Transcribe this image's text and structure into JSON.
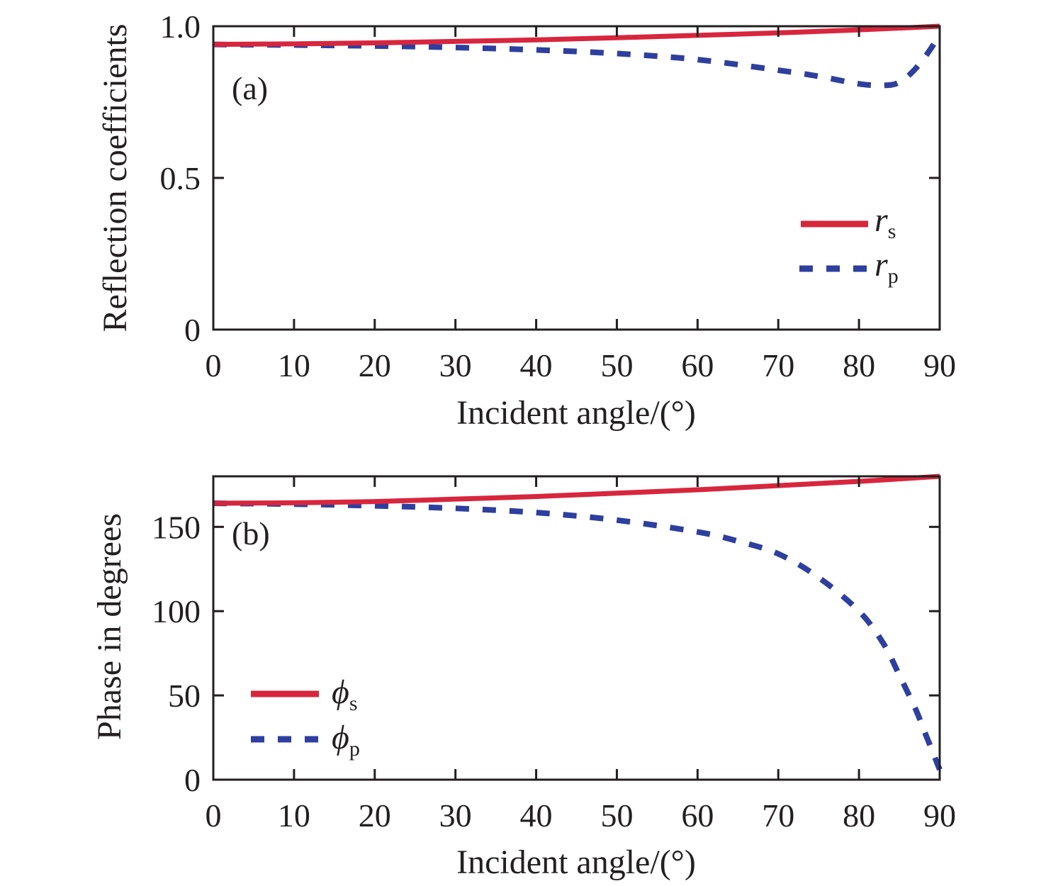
{
  "chart_data": [
    {
      "type": "line",
      "panel_label": "(a)",
      "title": "",
      "xlabel": "Incident angle/(°)",
      "ylabel": "Reflection coefficients",
      "xlim": [
        0,
        90
      ],
      "ylim": [
        0,
        1.0
      ],
      "x_ticks": [
        0,
        10,
        20,
        30,
        40,
        50,
        60,
        70,
        80,
        90
      ],
      "x_tick_labels": [
        "0",
        "10",
        "20",
        "30",
        "40",
        "50",
        "60",
        "70",
        "80",
        "90"
      ],
      "y_ticks": [
        0,
        0.5,
        1.0
      ],
      "y_tick_labels": [
        "0",
        "0.5",
        "1.0"
      ],
      "grid": false,
      "legend_position": "center-right",
      "series": [
        {
          "name": "r_s",
          "legend_main": "r",
          "legend_sub": "s",
          "style": "solid",
          "color": "#d7263d",
          "x": [
            0,
            10,
            20,
            30,
            40,
            50,
            60,
            70,
            80,
            90
          ],
          "values": [
            0.94,
            0.942,
            0.945,
            0.95,
            0.955,
            0.962,
            0.97,
            0.978,
            0.988,
            1.0
          ]
        },
        {
          "name": "r_p",
          "legend_main": "r",
          "legend_sub": "p",
          "style": "dashed",
          "color": "#2e3f9e",
          "x": [
            0,
            10,
            20,
            30,
            40,
            50,
            60,
            70,
            75,
            80,
            83,
            85,
            87,
            89,
            90
          ],
          "values": [
            0.94,
            0.938,
            0.935,
            0.93,
            0.922,
            0.91,
            0.89,
            0.855,
            0.835,
            0.81,
            0.805,
            0.815,
            0.86,
            0.93,
            0.98
          ]
        }
      ]
    },
    {
      "type": "line",
      "panel_label": "(b)",
      "title": "",
      "xlabel": "Incident angle/(°)",
      "ylabel": "Phase in degrees",
      "xlim": [
        0,
        90
      ],
      "ylim": [
        0,
        180
      ],
      "x_ticks": [
        0,
        10,
        20,
        30,
        40,
        50,
        60,
        70,
        80,
        90
      ],
      "x_tick_labels": [
        "0",
        "10",
        "20",
        "30",
        "40",
        "50",
        "60",
        "70",
        "80",
        "90"
      ],
      "y_ticks": [
        0,
        50,
        100,
        150
      ],
      "y_tick_labels": [
        "0",
        "50",
        "100",
        "150"
      ],
      "grid": false,
      "legend_position": "lower-left",
      "series": [
        {
          "name": "phi_s",
          "legend_main": "ϕ",
          "legend_sub": "s",
          "style": "solid",
          "color": "#d7263d",
          "x": [
            0,
            10,
            20,
            30,
            40,
            50,
            60,
            70,
            80,
            90
          ],
          "values": [
            164,
            164.3,
            165,
            166.5,
            168,
            170,
            172,
            174.5,
            177,
            180
          ]
        },
        {
          "name": "phi_p",
          "legend_main": "ϕ",
          "legend_sub": "p",
          "style": "dashed",
          "color": "#2e3f9e",
          "x": [
            0,
            10,
            20,
            30,
            40,
            50,
            60,
            65,
            70,
            75,
            80,
            83,
            85,
            87,
            88,
            89,
            90
          ],
          "values": [
            164,
            163.5,
            162.5,
            161,
            158.5,
            154,
            147,
            141.5,
            134,
            120,
            100,
            81,
            62,
            42,
            30,
            18,
            6
          ]
        }
      ]
    }
  ]
}
